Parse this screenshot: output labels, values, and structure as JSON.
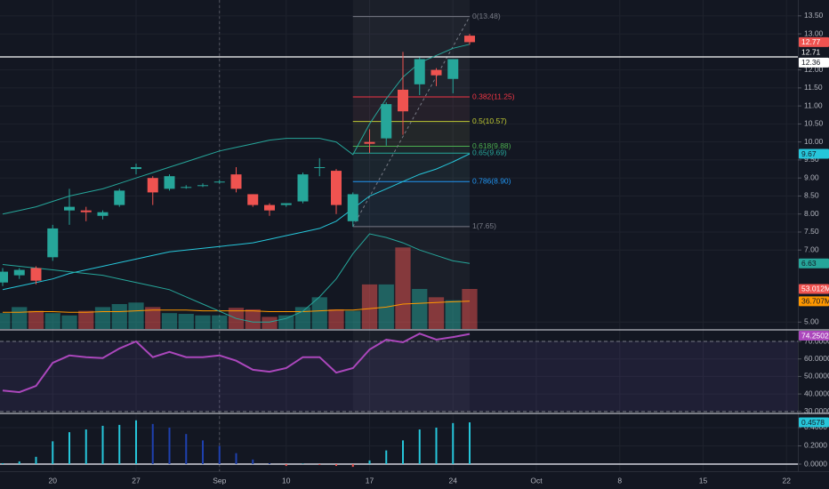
{
  "chart_data": [
    {
      "type": "candlestick",
      "xlim": [
        -0.16,
        47.68
      ],
      "xticks": [
        {
          "value": 3,
          "label": "20"
        },
        {
          "value": 8,
          "label": "27"
        },
        {
          "value": 13,
          "label": "Sep"
        },
        {
          "value": 17,
          "label": "10"
        },
        {
          "value": 22,
          "label": "17"
        },
        {
          "value": 27,
          "label": "24"
        },
        {
          "value": 32,
          "label": "Oct"
        },
        {
          "value": 37,
          "label": "8"
        },
        {
          "value": 42,
          "label": "15"
        },
        {
          "value": 47,
          "label": "22"
        }
      ],
      "x": [
        0,
        1,
        2,
        3,
        4,
        5,
        6,
        7,
        8,
        9,
        10,
        11,
        12,
        13,
        14,
        15,
        16,
        17,
        18,
        19,
        20,
        21,
        22,
        23,
        24,
        25,
        26,
        27,
        28
      ],
      "open": [
        6.1,
        6.3,
        6.5,
        6.8,
        8.1,
        8.1,
        7.95,
        8.25,
        9.25,
        9.0,
        8.7,
        8.75,
        8.8,
        8.9,
        9.1,
        8.55,
        8.25,
        8.25,
        8.35,
        9.3,
        9.2,
        7.8,
        10.0,
        10.1,
        11.45,
        11.6,
        12.0,
        11.75,
        12.95
      ],
      "high": [
        6.5,
        6.5,
        6.55,
        7.7,
        8.7,
        8.2,
        8.1,
        8.7,
        9.4,
        9.05,
        9.1,
        8.8,
        8.85,
        8.95,
        9.3,
        8.55,
        8.3,
        8.3,
        9.15,
        9.55,
        9.25,
        8.6,
        10.35,
        11.1,
        12.5,
        12.35,
        12.05,
        12.3,
        13.0
      ],
      "low": [
        6.0,
        6.2,
        6.05,
        6.7,
        7.7,
        7.8,
        7.85,
        8.2,
        9.1,
        8.25,
        8.65,
        8.7,
        8.75,
        8.85,
        8.6,
        8.2,
        7.95,
        8.2,
        8.3,
        9.05,
        8.0,
        7.65,
        9.7,
        9.9,
        10.2,
        11.3,
        11.55,
        11.35,
        12.7
      ],
      "close": [
        6.4,
        6.45,
        6.15,
        7.6,
        8.2,
        8.05,
        8.05,
        8.65,
        9.3,
        8.6,
        9.05,
        8.75,
        8.8,
        8.9,
        8.7,
        8.25,
        8.1,
        8.3,
        9.1,
        9.3,
        8.25,
        8.55,
        9.95,
        11.05,
        10.85,
        12.3,
        11.85,
        12.3,
        12.77
      ],
      "up_color": "#26a69a",
      "down_color": "#ef5350",
      "ylim": [
        4.81,
        13.94
      ],
      "yticks": [
        {
          "value": 13.5,
          "label": "13.50"
        },
        {
          "value": 13,
          "label": "13.00"
        },
        {
          "value": 12,
          "label": "12.00"
        },
        {
          "value": 11.5,
          "label": "11.50"
        },
        {
          "value": 11,
          "label": "11.00"
        },
        {
          "value": 10.5,
          "label": "10.50"
        },
        {
          "value": 10,
          "label": "10.00"
        },
        {
          "value": 9.5,
          "label": "9.50"
        },
        {
          "value": 9,
          "label": "9.00"
        },
        {
          "value": 8.5,
          "label": "8.50"
        },
        {
          "value": 8,
          "label": "8.00"
        },
        {
          "value": 7.5,
          "label": "7.50"
        },
        {
          "value": 7,
          "label": "7.00"
        },
        {
          "value": 5,
          "label": "5.00"
        }
      ],
      "grid": true,
      "series": [
        {
          "color": "#26a69a",
          "values": [
            8.0,
            8.1,
            8.2,
            8.35,
            8.5,
            8.6,
            8.7,
            8.85,
            9.0,
            9.15,
            9.3,
            9.45,
            9.6,
            9.75,
            9.85,
            9.95,
            10.05,
            10.1,
            10.1,
            10.1,
            10.0,
            9.65,
            10.5,
            11.2,
            11.8,
            12.2,
            12.4,
            12.6,
            12.71
          ]
        },
        {
          "color": "#26c6da",
          "values": [
            5.9,
            6.0,
            6.1,
            6.2,
            6.35,
            6.45,
            6.55,
            6.65,
            6.75,
            6.85,
            6.95,
            7.0,
            7.05,
            7.1,
            7.15,
            7.2,
            7.3,
            7.4,
            7.5,
            7.6,
            7.8,
            8.15,
            8.5,
            8.7,
            8.9,
            9.1,
            9.25,
            9.45,
            9.67
          ]
        },
        {
          "color": "#26a69a",
          "values": [
            6.6,
            6.55,
            6.5,
            6.45,
            6.4,
            6.35,
            6.3,
            6.2,
            6.1,
            6.0,
            5.9,
            5.7,
            5.5,
            5.3,
            5.1,
            5.0,
            5.0,
            5.1,
            5.3,
            5.7,
            6.2,
            6.9,
            7.45,
            7.35,
            7.2,
            7.0,
            6.85,
            6.7,
            6.63
          ]
        }
      ],
      "volume": {
        "values": [
          21,
          29,
          24,
          21,
          18,
          24,
          29,
          33,
          35,
          29,
          21,
          20,
          18,
          18,
          28,
          26,
          16,
          18,
          29,
          42,
          26,
          24,
          59,
          59,
          108,
          53,
          42,
          38,
          53.012
        ],
        "ylim": [
          0,
          117.8
        ],
        "last_label": "53.012M",
        "ma": {
          "color": "#ff9800",
          "values": [
            22,
            22,
            23,
            23,
            22,
            22,
            23,
            23,
            24,
            25,
            25,
            25,
            24,
            24,
            24,
            24,
            23,
            23,
            23,
            24,
            25,
            25,
            27,
            29,
            33,
            34,
            35,
            36,
            36.707
          ],
          "last_label": "36.707M"
        }
      },
      "fib": [
        {
          "price": 13.48,
          "label": "0(13.48)",
          "color": "#787b86"
        },
        {
          "price": 11.25,
          "label": "0.382(11.25)",
          "color": "#f23645"
        },
        {
          "price": 10.57,
          "label": "0.5(10.57)",
          "color": "#c0ca33"
        },
        {
          "price": 9.88,
          "label": "0.618(9.88)",
          "color": "#4caf50"
        },
        {
          "price": 9.69,
          "label": "0.65(9.69)",
          "color": "#26a69a"
        },
        {
          "price": 8.9,
          "label": "0.786(8.90)",
          "color": "#2196f3"
        },
        {
          "price": 7.65,
          "label": "1(7.65)",
          "color": "#787b86"
        }
      ],
      "hline": 12.36
    },
    {
      "type": "line",
      "color": "#ab47bc",
      "values": [
        42,
        41,
        44.6,
        57.8,
        62,
        61,
        60.5,
        66,
        70,
        61,
        64,
        61,
        61,
        62,
        59,
        53.8,
        52.7,
        54.8,
        61,
        61,
        52.2,
        54.8,
        65.4,
        71,
        69.5,
        74.5,
        71,
        72.5,
        74.2502
      ],
      "ylim": [
        29.4,
        76.1
      ],
      "yticks": [
        {
          "value": 70,
          "label": "70.0000"
        },
        {
          "value": 60,
          "label": "60.0000"
        },
        {
          "value": 50,
          "label": "50.0000"
        },
        {
          "value": 40,
          "label": "40.0000"
        },
        {
          "value": 30,
          "label": "30.0000"
        }
      ]
    },
    {
      "type": "bar",
      "values": [
        0.01,
        0.03,
        0.08,
        0.25,
        0.35,
        0.38,
        0.42,
        0.43,
        0.48,
        0.44,
        0.4,
        0.33,
        0.26,
        0.2,
        0.12,
        0.05,
        0.01,
        -0.02,
        0.005,
        -0.01,
        -0.02,
        -0.03,
        0.04,
        0.15,
        0.26,
        0.38,
        0.4,
        0.45,
        0.4578
      ],
      "colors": {
        "rising": "#26c6da",
        "falling": "#1e40af",
        "negative": "#ef5350"
      },
      "ylim": [
        -0.078,
        0.546
      ],
      "yticks": [
        {
          "value": 0.4,
          "label": "0.4000"
        },
        {
          "value": 0.2,
          "label": "0.2000"
        },
        {
          "value": 0,
          "label": "0.0000"
        }
      ]
    }
  ]
}
